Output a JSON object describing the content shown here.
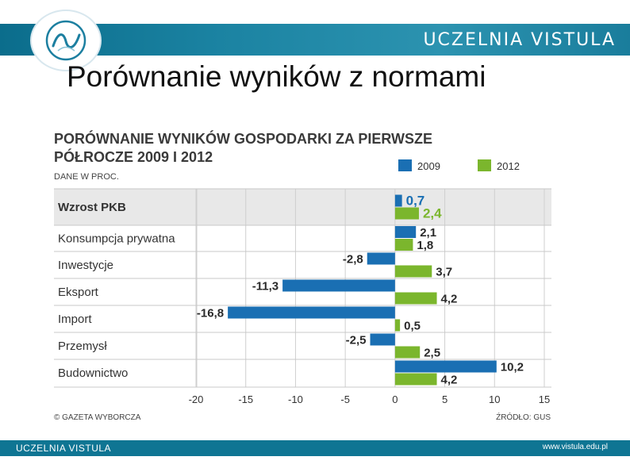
{
  "header": {
    "brand": "UCZELNIA VISTULA",
    "logo_icon": "vistula-wave-logo-icon",
    "slide_title": "Porównanie wyników z normami"
  },
  "footer": {
    "brand": "UCZELNIA VISTULA",
    "website": "www.vistula.edu.pl"
  },
  "colors": {
    "band": "#1380a0",
    "series_2009": "#1a6fb3",
    "series_2012": "#7bb62d",
    "header_row": "#e8e8e8",
    "grid": "#cfcfcf"
  },
  "chart_data": {
    "type": "bar",
    "orientation": "horizontal",
    "title_line1": "PORÓWNANIE WYNIKÓW GOSPODARKI ZA PIERWSZE",
    "title_line2": "PÓŁROCZE 2009 I 2012",
    "subtitle": "DANE W PROC.",
    "categories": [
      "Wzrost PKB",
      "Konsumpcja prywatna",
      "Inwestycje",
      "Eksport",
      "Import",
      "Przemysł",
      "Budownictwo"
    ],
    "series": [
      {
        "name": "2009",
        "values": [
          0.7,
          2.1,
          -2.8,
          -11.3,
          -16.8,
          -2.5,
          10.2
        ],
        "labels": [
          "0,7",
          "2,1",
          "-2,8",
          "-11,3",
          "-16,8",
          "-2,5",
          "10,2"
        ]
      },
      {
        "name": "2012",
        "values": [
          2.4,
          1.8,
          3.7,
          4.2,
          0.5,
          2.5,
          4.2
        ],
        "labels": [
          "2,4",
          "1,8",
          "3,7",
          "4,2",
          "0,5",
          "2,5",
          "4,2"
        ]
      }
    ],
    "xlim": [
      -20,
      15
    ],
    "xticks": [
      -20,
      -15,
      -10,
      -5,
      0,
      5,
      10,
      15
    ],
    "xtick_labels": [
      "-20",
      "-15",
      "-10",
      "-5",
      "0",
      "5",
      "10",
      "15"
    ],
    "source_left": "© GAZETA WYBORCZA",
    "source_right": "ŹRÓDŁO: GUS"
  }
}
